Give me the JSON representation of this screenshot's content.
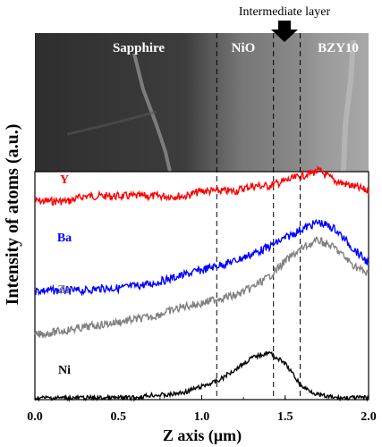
{
  "figure": {
    "annotation_intermediate": "Intermediate layer",
    "regions": [
      "Sapphire",
      "NiO",
      "BZY10"
    ],
    "xlabel": "Z axis (μm)",
    "ylabel": "Intensity of atoms (a.u.)"
  },
  "chart_data": {
    "type": "line",
    "title": "",
    "xlabel": "Z axis (μm)",
    "ylabel": "Intensity of atoms (a.u.)",
    "xlim": [
      0.0,
      2.0
    ],
    "xticks": [
      "0.0",
      "0.5",
      "1.0",
      "1.5",
      "2.0"
    ],
    "grid": false,
    "legend": "none",
    "boundaries_x": [
      1.09,
      1.43,
      1.59
    ],
    "x": [
      0.0,
      0.1,
      0.2,
      0.3,
      0.4,
      0.5,
      0.6,
      0.7,
      0.8,
      0.9,
      1.0,
      1.1,
      1.2,
      1.3,
      1.4,
      1.5,
      1.6,
      1.7,
      1.8,
      1.9,
      2.0
    ],
    "series": [
      {
        "name": "Y",
        "color": "#ff0000",
        "values": [
          0.85,
          0.85,
          0.85,
          0.86,
          0.86,
          0.86,
          0.86,
          0.86,
          0.86,
          0.86,
          0.87,
          0.87,
          0.87,
          0.88,
          0.88,
          0.89,
          0.9,
          0.91,
          0.89,
          0.88,
          0.87
        ]
      },
      {
        "name": "Ba",
        "color": "#0000ff",
        "values": [
          0.55,
          0.55,
          0.55,
          0.55,
          0.56,
          0.56,
          0.57,
          0.58,
          0.6,
          0.62,
          0.64,
          0.66,
          0.68,
          0.71,
          0.74,
          0.78,
          0.82,
          0.85,
          0.82,
          0.74,
          0.67
        ]
      },
      {
        "name": "Zr",
        "color": "#808080",
        "values": [
          0.3,
          0.31,
          0.32,
          0.33,
          0.34,
          0.35,
          0.36,
          0.37,
          0.39,
          0.41,
          0.42,
          0.44,
          0.45,
          0.48,
          0.52,
          0.58,
          0.63,
          0.66,
          0.63,
          0.57,
          0.53
        ]
      },
      {
        "name": "Ni",
        "color": "#000000",
        "values": [
          0.04,
          0.04,
          0.04,
          0.04,
          0.04,
          0.04,
          0.04,
          0.05,
          0.05,
          0.06,
          0.08,
          0.1,
          0.14,
          0.18,
          0.2,
          0.16,
          0.08,
          0.05,
          0.04,
          0.04,
          0.04
        ]
      }
    ]
  },
  "colors": {
    "image_bg": "#4a4a4a",
    "sapphire": "#3c3c3c",
    "nio": "#8a8a8a",
    "bzy": "#b0b0b0"
  }
}
